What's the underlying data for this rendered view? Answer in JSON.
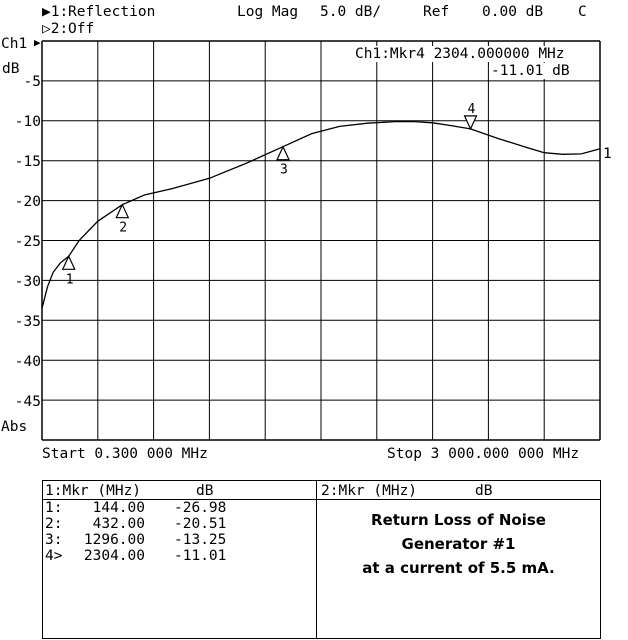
{
  "header": {
    "ch1_indicator": "▶1:",
    "ch1_label": "Reflection",
    "ch2_indicator": "▷2:",
    "ch2_label": "Off",
    "format": "Log Mag",
    "scale": "5.0 dB/",
    "ref_label": "Ref",
    "ref_value": "0.00 dB",
    "cal_flag": "C"
  },
  "plot": {
    "channel_label": "Ch1",
    "channel_marker": "▶",
    "unit_label": "dB",
    "bottom_label": "Abs",
    "y_tick_labels": [
      "-5",
      "-10",
      "-15",
      "-20",
      "-25",
      "-30",
      "-35",
      "-40",
      "-45"
    ],
    "active_marker_readout": {
      "line1": "Ch1:Mkr4 2304.000000 MHz",
      "line2": "-11.01 dB"
    },
    "end_label": "1"
  },
  "sweep": {
    "start": "Start 0.300 000 MHz",
    "stop": "Stop 3 000.000 000 MHz"
  },
  "chart_data": {
    "type": "line",
    "title": "",
    "xlabel": "",
    "ylabel": "dB",
    "xlim": [
      0.3,
      3000
    ],
    "ylim": [
      -50,
      0
    ],
    "grid": true,
    "series": [
      {
        "x": [
          0.3,
          30,
          60,
          100,
          144,
          200,
          300,
          432,
          550,
          700,
          900,
          1100,
          1296,
          1450,
          1600,
          1750,
          1900,
          2000,
          2100,
          2200,
          2304,
          2450,
          2600,
          2700,
          2800,
          2900,
          3000
        ],
        "y": [
          -33.5,
          -30.8,
          -29.0,
          -27.8,
          -26.98,
          -25.0,
          -22.6,
          -20.51,
          -19.3,
          -18.5,
          -17.2,
          -15.3,
          -13.25,
          -11.6,
          -10.7,
          -10.3,
          -10.1,
          -10.1,
          -10.25,
          -10.6,
          -11.01,
          -12.2,
          -13.3,
          -14.0,
          -14.2,
          -14.15,
          -13.5
        ]
      }
    ],
    "markers": [
      {
        "id": "1",
        "freq_mhz": 144.0,
        "value_db": -26.98,
        "direction": "up"
      },
      {
        "id": "2",
        "freq_mhz": 432.0,
        "value_db": -20.51,
        "direction": "up"
      },
      {
        "id": "3",
        "freq_mhz": 1296.0,
        "value_db": -13.25,
        "direction": "up"
      },
      {
        "id": "4",
        "freq_mhz": 2304.0,
        "value_db": -11.01,
        "direction": "down"
      }
    ]
  },
  "table_ch1": {
    "header_left": "1:Mkr (MHz)",
    "header_right": "dB",
    "rows": [
      {
        "label": "1:",
        "freq": "144.00",
        "value": "-26.98"
      },
      {
        "label": "2:",
        "freq": "432.00",
        "value": "-20.51"
      },
      {
        "label": "3:",
        "freq": "1296.00",
        "value": "-13.25"
      },
      {
        "label": "4>",
        "freq": "2304.00",
        "value": "-11.01"
      }
    ]
  },
  "table_ch2": {
    "header_left": "2:Mkr (MHz)",
    "header_right": "dB"
  },
  "note": {
    "line1": "Return Loss of Noise",
    "line2": "Generator #1",
    "line3": "at a current of 5.5 mA."
  }
}
